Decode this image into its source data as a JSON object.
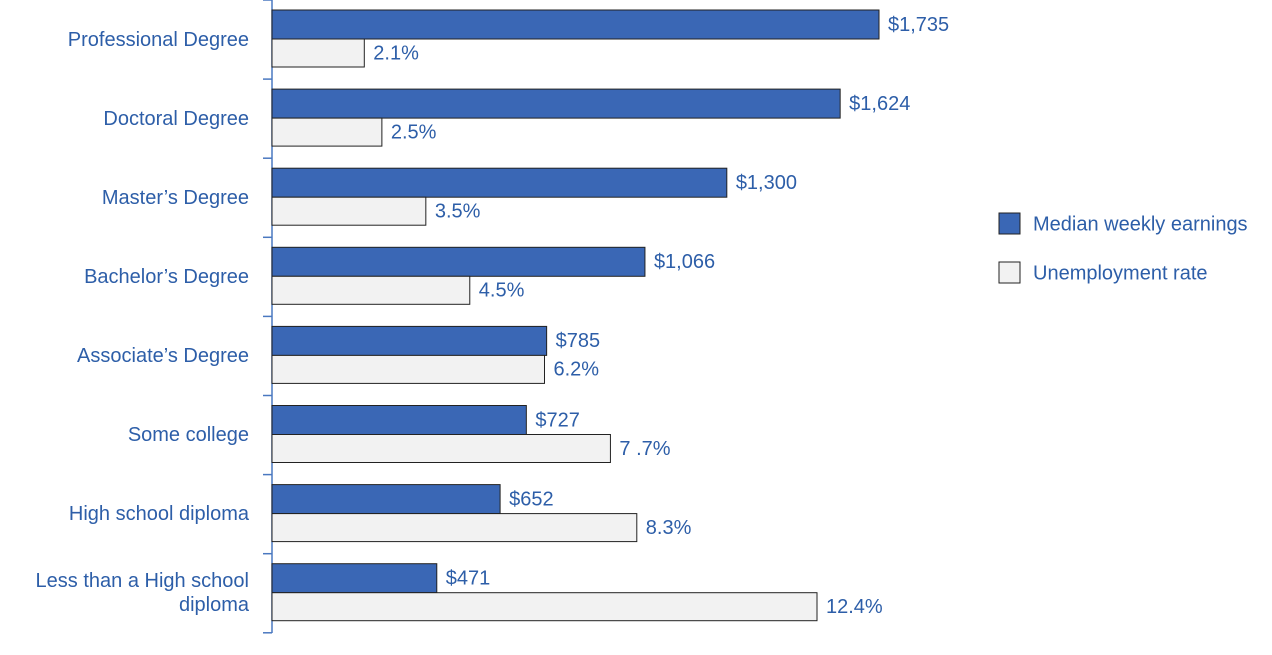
{
  "chart_data": {
    "type": "bar",
    "orientation": "horizontal",
    "categories": [
      "Professional Degree",
      "Doctoral Degree",
      "Master’s Degree",
      "Bachelor’s Degree",
      "Associate’s Degree",
      "Some college",
      "High school diploma",
      "Less than a High school diploma"
    ],
    "series": [
      {
        "name": "Median weekly earnings",
        "color": "#3a67b5",
        "values": [
          1735,
          1624,
          1300,
          1066,
          785,
          727,
          652,
          471
        ],
        "value_labels": [
          "$1,735",
          "$1,624",
          "$1,300",
          "$1,066",
          "$785",
          "$727",
          "$652",
          "$471"
        ]
      },
      {
        "name": "Unemployment rate",
        "color": "#f2f2f2",
        "values": [
          2.1,
          2.5,
          3.5,
          4.5,
          6.2,
          7.7,
          8.3,
          12.4
        ],
        "value_labels": [
          "2.1%",
          "2.5%",
          "3.5%",
          "4.5%",
          "6.2%",
          "7 .7%",
          "8.3%",
          "12.4%"
        ]
      }
    ],
    "legend": "right"
  }
}
